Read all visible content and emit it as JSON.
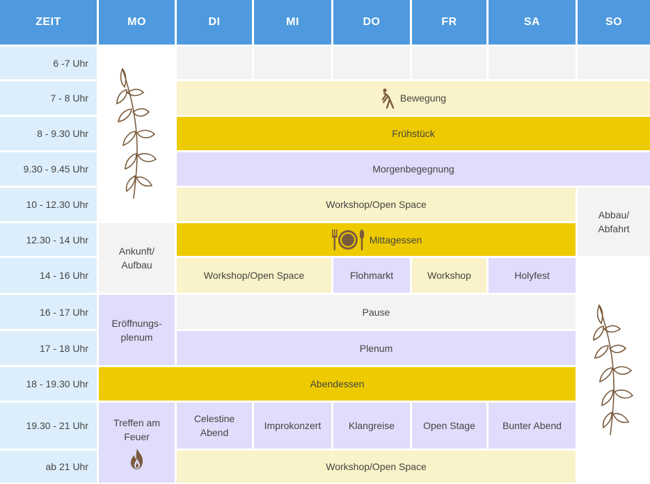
{
  "header": {
    "zeit": "ZEIT",
    "mo": "MO",
    "di": "DI",
    "mi": "MI",
    "do": "DO",
    "fr": "FR",
    "sa": "SA",
    "so": "SO"
  },
  "times": [
    "6 -7 Uhr",
    "7 - 8 Uhr",
    "8 - 9.30 Uhr",
    "9.30 - 9.45 Uhr",
    "10 - 12.30 Uhr",
    "12.30 - 14 Uhr",
    "14 - 16 Uhr",
    "16 - 17 Uhr",
    "17 - 18 Uhr",
    "18 - 19.30 Uhr",
    "19.30 - 21 Uhr",
    "ab 21 Uhr"
  ],
  "events": {
    "bewegung": "Bewegung",
    "fruehstueck": "Frühstück",
    "morgenbegegnung": "Morgenbegegnung",
    "workshop_open_space_1": "Workshop/Open Space",
    "abbau": "Abbau/\nAbfahrt",
    "ankunft": "Ankunft/\nAufbau",
    "mittagessen": "Mittagessen",
    "workshop_open_space_2": "Workshop/Open Space",
    "flohmarkt": "Flohmarkt",
    "workshop": "Workshop",
    "holyfest": "Holyfest",
    "eroeffnung": "Eröffnungs-\nplenum",
    "pause": "Pause",
    "plenum": "Plenum",
    "abendessen": "Abendessen",
    "treffen": "Treffen am\nFeuer",
    "celestine": "Celestine\nAbend",
    "improkonzert": "Improkonzert",
    "klangreise": "Klangreise",
    "open_stage": "Open Stage",
    "bunter_abend": "Bunter Abend",
    "workshop_open_space_3": "Workshop/Open Space"
  },
  "icons": {
    "leaf": "leaf-branch-icon",
    "yoga": "yoga-figure-icon",
    "plate": "plate-cutlery-icon",
    "fire": "fire-icon"
  },
  "colors": {
    "header": "#4f9ade",
    "time": "#dceefb",
    "grey": "#f3f3f3",
    "cream": "#faf2c8",
    "gold": "#eecb00",
    "lavender": "#e0dcfb",
    "icon_brown": "#7a5a3c"
  }
}
